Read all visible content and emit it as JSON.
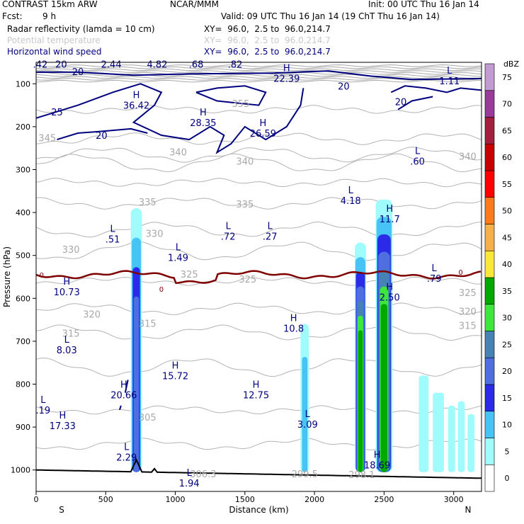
{
  "header": {
    "model": "CONTRAST 15km ARW",
    "org": "NCAR/MMM",
    "init": "Init: 00 UTC Thu 16 Jan 14",
    "fcst_label": "Fcst:",
    "fcst_value": "9 h",
    "valid": "Valid: 09 UTC Thu 16 Jan 14 (19 ChT Thu 16 Jan 14)",
    "fields": [
      {
        "name": "Radar reflectivity (lamda = 10 cm)",
        "xy": "XY=  96.0,  2.5 to  96.0,214.7",
        "color": "#000000"
      },
      {
        "name": "Potential temperature",
        "xy": "XY=  96.0,  2.5 to  96.0,214.7",
        "color": "#c8c8c8"
      },
      {
        "name": "Horizontal wind speed",
        "xy": "XY=  96.0,  2.5 to  96.0,214.7",
        "color": "#000080"
      }
    ]
  },
  "chart_data": {
    "type": "cross-section",
    "xlabel": "Distance (km)",
    "ylabel": "Pressure (hPa)",
    "xlim": [
      0,
      3200
    ],
    "ylim": [
      1050,
      50
    ],
    "x_ticks": [
      0,
      500,
      1000,
      1500,
      2000,
      2500,
      3000
    ],
    "y_ticks": [
      100,
      200,
      300,
      400,
      500,
      600,
      700,
      800,
      900,
      1000
    ],
    "x_end_labels": {
      "left": "S",
      "right": "N"
    },
    "colorbar": {
      "unit": "dBZ",
      "levels": [
        0,
        5,
        10,
        15,
        20,
        25,
        30,
        35,
        40,
        45,
        50,
        55,
        60,
        65,
        70,
        75
      ],
      "colors": [
        "#ffffff",
        "#a0fcfc",
        "#47c4f5",
        "#2a2ae8",
        "#4f6ee0",
        "#4682b4",
        "#3de73d",
        "#00a800",
        "#f9e83a",
        "#f5b04a",
        "#ff7a1a",
        "#ff0000",
        "#c80000",
        "#a31f3d",
        "#9a3a9a",
        "#c39bd3"
      ]
    },
    "theta_labels": [
      {
        "v": "355",
        "x": 1470,
        "p": 147
      },
      {
        "v": "345",
        "x": 80,
        "p": 227
      },
      {
        "v": "340",
        "x": 1020,
        "p": 260
      },
      {
        "v": "340",
        "x": 1500,
        "p": 282
      },
      {
        "v": "340",
        "x": 3100,
        "p": 270
      },
      {
        "v": "335",
        "x": 800,
        "p": 377
      },
      {
        "v": "335",
        "x": 1500,
        "p": 382
      },
      {
        "v": "330",
        "x": 850,
        "p": 450
      },
      {
        "v": "330",
        "x": 250,
        "p": 487
      },
      {
        "v": "325",
        "x": 1520,
        "p": 557
      },
      {
        "v": "325",
        "x": 1100,
        "p": 545
      },
      {
        "v": "325",
        "x": 3100,
        "p": 588
      },
      {
        "v": "320",
        "x": 400,
        "p": 638
      },
      {
        "v": "320",
        "x": 3100,
        "p": 632
      },
      {
        "v": "315",
        "x": 250,
        "p": 683
      },
      {
        "v": "315",
        "x": 3100,
        "p": 665
      },
      {
        "v": "315",
        "x": 800,
        "p": 660
      },
      {
        "v": "305",
        "x": 800,
        "p": 878
      },
      {
        "v": "306.3",
        "x": 1200,
        "p": 1010
      },
      {
        "v": "299.5",
        "x": 1930,
        "p": 1010
      },
      {
        "v": "298.1",
        "x": 2340,
        "p": 1012
      }
    ],
    "wind_labels": [
      {
        "v": "25",
        "x": 150,
        "p": 167
      },
      {
        "v": "20",
        "x": 470,
        "p": 222
      },
      {
        "v": "20",
        "x": 2620,
        "p": 143
      },
      {
        "v": "20",
        "x": 2210,
        "p": 107
      },
      {
        "v": "20",
        "x": 300,
        "p": 73
      }
    ],
    "extrema": [
      {
        "t": "H",
        "v": "36.42",
        "x": 720,
        "p": 140
      },
      {
        "t": "H",
        "v": "28.35",
        "x": 1200,
        "p": 180
      },
      {
        "t": "H",
        "v": "26.59",
        "x": 1630,
        "p": 205
      },
      {
        "t": "H",
        "v": "22.39",
        "x": 1800,
        "p": 77
      },
      {
        "t": "L",
        "v": "1.11",
        "x": 2970,
        "p": 83
      },
      {
        "t": "L",
        "v": ".60",
        "x": 2740,
        "p": 270
      },
      {
        "t": "L",
        "v": "4.18",
        "x": 2260,
        "p": 362
      },
      {
        "t": "H",
        "v": "11.7",
        "x": 2540,
        "p": 405
      },
      {
        "t": "L",
        "v": ".51",
        "x": 550,
        "p": 452
      },
      {
        "t": "L",
        "v": ".72",
        "x": 1380,
        "p": 445
      },
      {
        "t": "L",
        "v": ".27",
        "x": 1680,
        "p": 445
      },
      {
        "t": "L",
        "v": "1.49",
        "x": 1020,
        "p": 495
      },
      {
        "t": "L",
        "v": ".79",
        "x": 2860,
        "p": 543
      },
      {
        "t": "H",
        "v": "10.73",
        "x": 220,
        "p": 575
      },
      {
        "t": "H",
        "v": "2.50",
        "x": 2540,
        "p": 587
      },
      {
        "t": "H",
        "v": "10.8",
        "x": 1850,
        "p": 660
      },
      {
        "t": "L",
        "v": "8.03",
        "x": 220,
        "p": 710
      },
      {
        "t": "H",
        "v": "15.72",
        "x": 1000,
        "p": 770
      },
      {
        "t": "H",
        "v": "20.66",
        "x": 630,
        "p": 815
      },
      {
        "t": "H",
        "v": "12.75",
        "x": 1580,
        "p": 815
      },
      {
        "t": "L",
        "v": ".19",
        "x": 50,
        "p": 850
      },
      {
        "t": "H",
        "v": "17.33",
        "x": 190,
        "p": 887
      },
      {
        "t": "L",
        "v": "3.09",
        "x": 1950,
        "p": 883
      },
      {
        "t": "L",
        "v": "2.29",
        "x": 650,
        "p": 960
      },
      {
        "t": "H",
        "v": "18.69",
        "x": 2450,
        "p": 978
      },
      {
        "t": "L",
        "v": "1.94",
        "x": 1100,
        "p": 1020
      }
    ],
    "top_labels": [
      ".42",
      "20",
      "2.44",
      "4.82",
      ".68",
      ".82"
    ],
    "top_label_x": [
      30,
      180,
      540,
      870,
      1150,
      1430
    ],
    "zero_line_labels": [
      {
        "v": "0",
        "x": 40,
        "p": 547
      },
      {
        "v": "0",
        "x": 900,
        "p": 580
      },
      {
        "v": "0",
        "x": 3050,
        "p": 540
      }
    ],
    "cells": [
      {
        "x0": 680,
        "x1": 760,
        "top": 390,
        "max_dbz": 20
      },
      {
        "x0": 1900,
        "x1": 1960,
        "top": 660,
        "max_dbz": 10
      },
      {
        "x0": 2290,
        "x1": 2370,
        "top": 470,
        "max_dbz": 35
      },
      {
        "x0": 2440,
        "x1": 2560,
        "top": 370,
        "max_dbz": 35
      },
      {
        "x0": 2750,
        "x1": 3150,
        "top": 780,
        "max_dbz": 5
      }
    ],
    "zero_line_p": 545
  }
}
